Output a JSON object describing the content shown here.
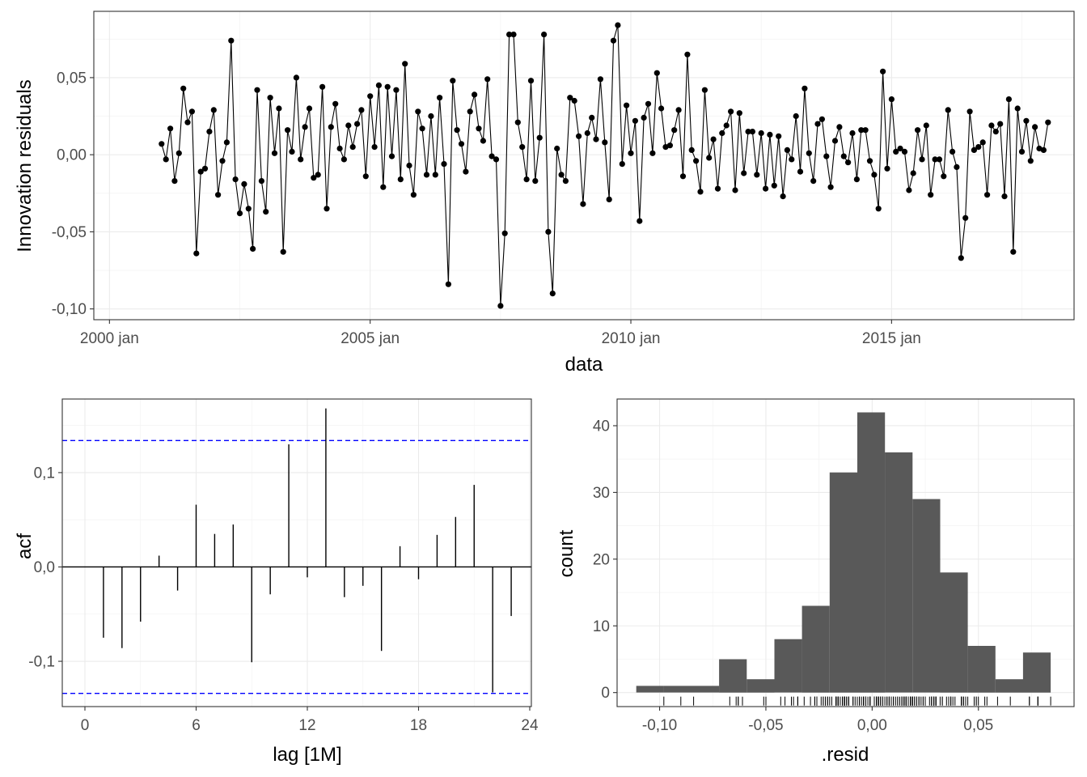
{
  "chart_data": [
    {
      "type": "line",
      "title": "",
      "xlabel": "data",
      "ylabel": "Innovation residuals",
      "x_start": "2001 jan",
      "frequency": "monthly",
      "xlim": [
        1999.7,
        2018.5
      ],
      "ylim": [
        -0.107,
        0.093
      ],
      "x_ticks": [
        2000,
        2005,
        2010,
        2015
      ],
      "x_tick_labels": [
        "2000 jan",
        "2005 jan",
        "2010 jan",
        "2015 jan"
      ],
      "y_ticks": [
        -0.1,
        -0.05,
        0.0,
        0.05
      ],
      "y_tick_labels": [
        "-0,10",
        "-0,05",
        "0,00",
        "0,05"
      ],
      "values": [
        0.007,
        -0.003,
        0.017,
        -0.017,
        0.001,
        0.043,
        0.021,
        0.028,
        -0.064,
        -0.011,
        -0.009,
        0.015,
        0.029,
        -0.026,
        -0.004,
        0.008,
        0.074,
        -0.016,
        -0.038,
        -0.019,
        -0.035,
        -0.061,
        0.042,
        -0.017,
        -0.037,
        0.037,
        0.001,
        0.03,
        -0.063,
        0.016,
        0.002,
        0.05,
        -0.003,
        0.018,
        0.03,
        -0.015,
        -0.013,
        0.044,
        -0.035,
        0.018,
        0.033,
        0.004,
        -0.003,
        0.019,
        0.005,
        0.02,
        0.029,
        -0.014,
        0.038,
        0.005,
        0.045,
        -0.021,
        0.044,
        -0.001,
        0.042,
        -0.016,
        0.059,
        -0.007,
        -0.026,
        0.028,
        0.017,
        -0.013,
        0.025,
        -0.013,
        0.037,
        -0.006,
        -0.084,
        0.048,
        0.016,
        0.007,
        -0.011,
        0.028,
        0.039,
        0.017,
        0.009,
        0.049,
        -0.001,
        -0.003,
        -0.098,
        -0.051,
        0.078,
        0.078,
        0.021,
        0.005,
        -0.016,
        0.048,
        -0.017,
        0.011,
        0.078,
        -0.05,
        -0.09,
        0.004,
        -0.013,
        -0.017,
        0.037,
        0.035,
        0.012,
        -0.032,
        0.014,
        0.024,
        0.01,
        0.049,
        0.008,
        -0.029,
        0.074,
        0.084,
        -0.006,
        0.032,
        0.001,
        0.022,
        -0.043,
        0.024,
        0.033,
        0.001,
        0.053,
        0.03,
        0.005,
        0.006,
        0.016,
        0.029,
        -0.014,
        0.065,
        0.003,
        -0.004,
        -0.024,
        0.042,
        -0.002,
        0.01,
        -0.022,
        0.014,
        0.019,
        0.028,
        -0.023,
        0.027,
        -0.012,
        0.015,
        0.015,
        -0.013,
        0.014,
        -0.022,
        0.013,
        -0.02,
        0.012,
        -0.027,
        0.003,
        -0.003,
        0.025,
        -0.011,
        0.043,
        0.001,
        -0.017,
        0.02,
        0.023,
        -0.001,
        -0.021,
        0.009,
        0.018,
        -0.001,
        -0.005,
        0.014,
        -0.016,
        0.016,
        0.016,
        -0.004,
        -0.013,
        -0.035,
        0.054,
        -0.009,
        0.036,
        0.002,
        0.004,
        0.002,
        -0.023,
        -0.012,
        0.016,
        -0.003,
        0.019,
        -0.026,
        -0.003,
        -0.003,
        -0.014,
        0.029,
        0.002,
        -0.008,
        -0.067,
        -0.041,
        0.028,
        0.003,
        0.005,
        0.008,
        -0.026,
        0.019,
        0.015,
        0.02,
        -0.027,
        0.036,
        -0.063,
        0.03,
        0.002,
        0.022,
        -0.004,
        0.018,
        0.004,
        0.003,
        0.021
      ]
    },
    {
      "type": "bar",
      "title": "",
      "xlabel": "lag [1M]",
      "ylabel": "acf",
      "xlim": [
        0,
        24
      ],
      "ylim": [
        -0.148,
        0.178
      ],
      "x_ticks": [
        0,
        6,
        12,
        18,
        24
      ],
      "x_tick_labels": [
        "0",
        "6",
        "12",
        "18",
        "24"
      ],
      "y_ticks": [
        -0.1,
        0.0,
        0.1
      ],
      "y_tick_labels": [
        "-0,1",
        "0,0",
        "0,1"
      ],
      "lags": [
        1,
        2,
        3,
        4,
        5,
        6,
        7,
        8,
        9,
        10,
        11,
        12,
        13,
        14,
        15,
        16,
        17,
        18,
        19,
        20,
        21,
        22,
        23
      ],
      "values": [
        -0.075,
        -0.086,
        -0.058,
        0.012,
        -0.025,
        0.066,
        0.035,
        0.045,
        -0.101,
        -0.029,
        0.13,
        -0.011,
        0.168,
        -0.032,
        -0.02,
        -0.089,
        0.022,
        -0.013,
        0.034,
        0.053,
        0.087,
        -0.133,
        -0.052
      ],
      "confidence_bounds": [
        -0.134,
        0.134
      ],
      "bound_color": "#0000ff"
    },
    {
      "type": "bar",
      "subtype": "histogram",
      "title": "",
      "xlabel": ".resid",
      "ylabel": "count",
      "xlim": [
        -0.12,
        0.095
      ],
      "ylim": [
        -2.1,
        44
      ],
      "x_ticks": [
        -0.1,
        -0.05,
        0.0,
        0.05
      ],
      "x_tick_labels": [
        "-0,10",
        "-0,05",
        "0,00",
        "0,05"
      ],
      "y_ticks": [
        0,
        10,
        20,
        30,
        40
      ],
      "y_tick_labels": [
        "0",
        "10",
        "20",
        "30",
        "40"
      ],
      "bin_width": 0.013,
      "bin_starts": [
        -0.111,
        -0.098,
        -0.085,
        -0.072,
        -0.059,
        -0.046,
        -0.033,
        -0.02,
        -0.007,
        0.006,
        0.019,
        0.032,
        0.045,
        0.058,
        0.071
      ],
      "counts": [
        1,
        1,
        1,
        5,
        2,
        8,
        13,
        33,
        42,
        36,
        29,
        18,
        7,
        2,
        6
      ],
      "bar_color": "#595959",
      "rug": "residual values"
    }
  ]
}
